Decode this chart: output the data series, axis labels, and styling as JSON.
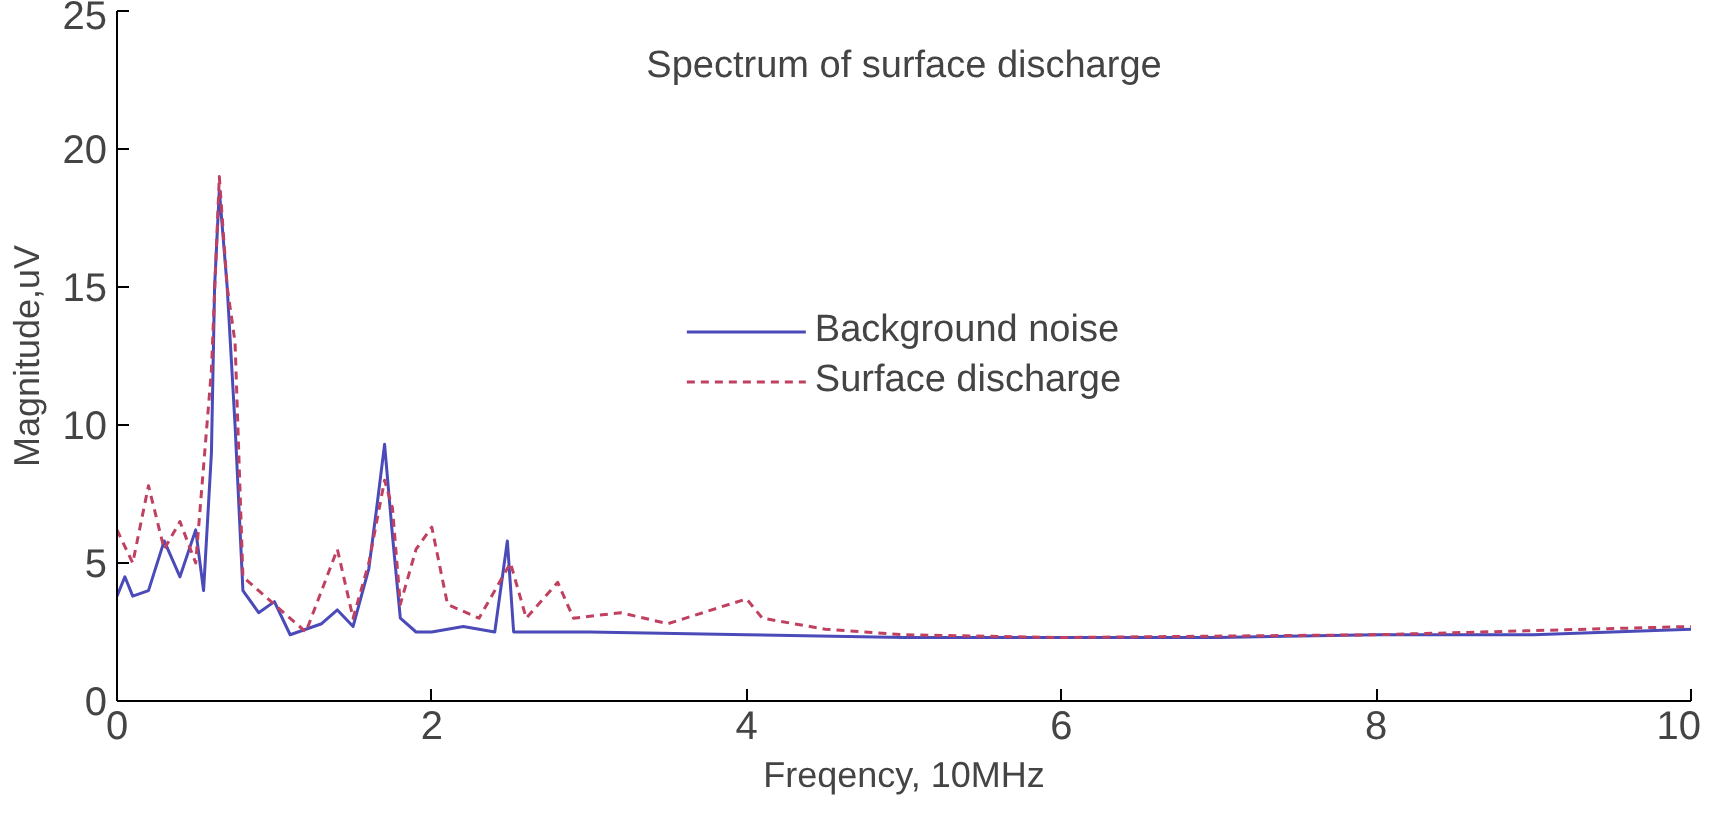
{
  "chart_data": {
    "type": "line",
    "title": "Spectrum of surface discharge",
    "xlabel": "Freqency, 10MHz",
    "ylabel": "Magnitude,uV",
    "xlim": [
      0,
      10
    ],
    "ylim": [
      0,
      25
    ],
    "xticks": [
      0,
      2,
      4,
      6,
      8,
      10
    ],
    "yticks": [
      0,
      5,
      10,
      15,
      20,
      25
    ],
    "grid": false,
    "legend": "center",
    "series": [
      {
        "name": "Background noise",
        "color": "#4a4ab8",
        "line_style": "solid",
        "x": [
          0,
          0.05,
          0.1,
          0.2,
          0.3,
          0.4,
          0.5,
          0.55,
          0.6,
          0.62,
          0.65,
          0.7,
          0.75,
          0.8,
          0.9,
          1.0,
          1.1,
          1.3,
          1.4,
          1.5,
          1.6,
          1.65,
          1.7,
          1.75,
          1.8,
          1.9,
          2.0,
          2.2,
          2.4,
          2.48,
          2.52,
          3,
          4,
          5,
          6,
          7,
          8,
          9,
          10
        ],
        "values": [
          3.8,
          4.5,
          3.8,
          4.0,
          5.8,
          4.5,
          6.2,
          4.0,
          9,
          15,
          18.5,
          15,
          10,
          4,
          3.2,
          3.6,
          2.4,
          2.8,
          3.3,
          2.7,
          4.8,
          7,
          9.3,
          6,
          3,
          2.5,
          2.5,
          2.7,
          2.5,
          5.8,
          2.5,
          2.5,
          2.4,
          2.3,
          2.3,
          2.3,
          2.4,
          2.4,
          2.6
        ]
      },
      {
        "name": "Surface discharge",
        "color": "#c04060",
        "line_style": "dashed",
        "x": [
          0,
          0.1,
          0.2,
          0.3,
          0.4,
          0.5,
          0.6,
          0.65,
          0.7,
          0.75,
          0.8,
          1.0,
          1.2,
          1.4,
          1.5,
          1.6,
          1.7,
          1.75,
          1.8,
          1.9,
          2.0,
          2.1,
          2.3,
          2.5,
          2.6,
          2.8,
          2.9,
          3.2,
          3.5,
          4.0,
          4.1,
          4.5,
          5,
          6,
          8,
          10
        ],
        "values": [
          6.2,
          5,
          7.8,
          5.5,
          6.5,
          5,
          12,
          19,
          15,
          13,
          4.5,
          3.5,
          2.5,
          5.5,
          3,
          5,
          8,
          7,
          3.5,
          5.5,
          6.3,
          3.5,
          3,
          5,
          3,
          4.3,
          3,
          3.2,
          2.8,
          3.7,
          3,
          2.6,
          2.4,
          2.3,
          2.4,
          2.7
        ]
      }
    ]
  }
}
